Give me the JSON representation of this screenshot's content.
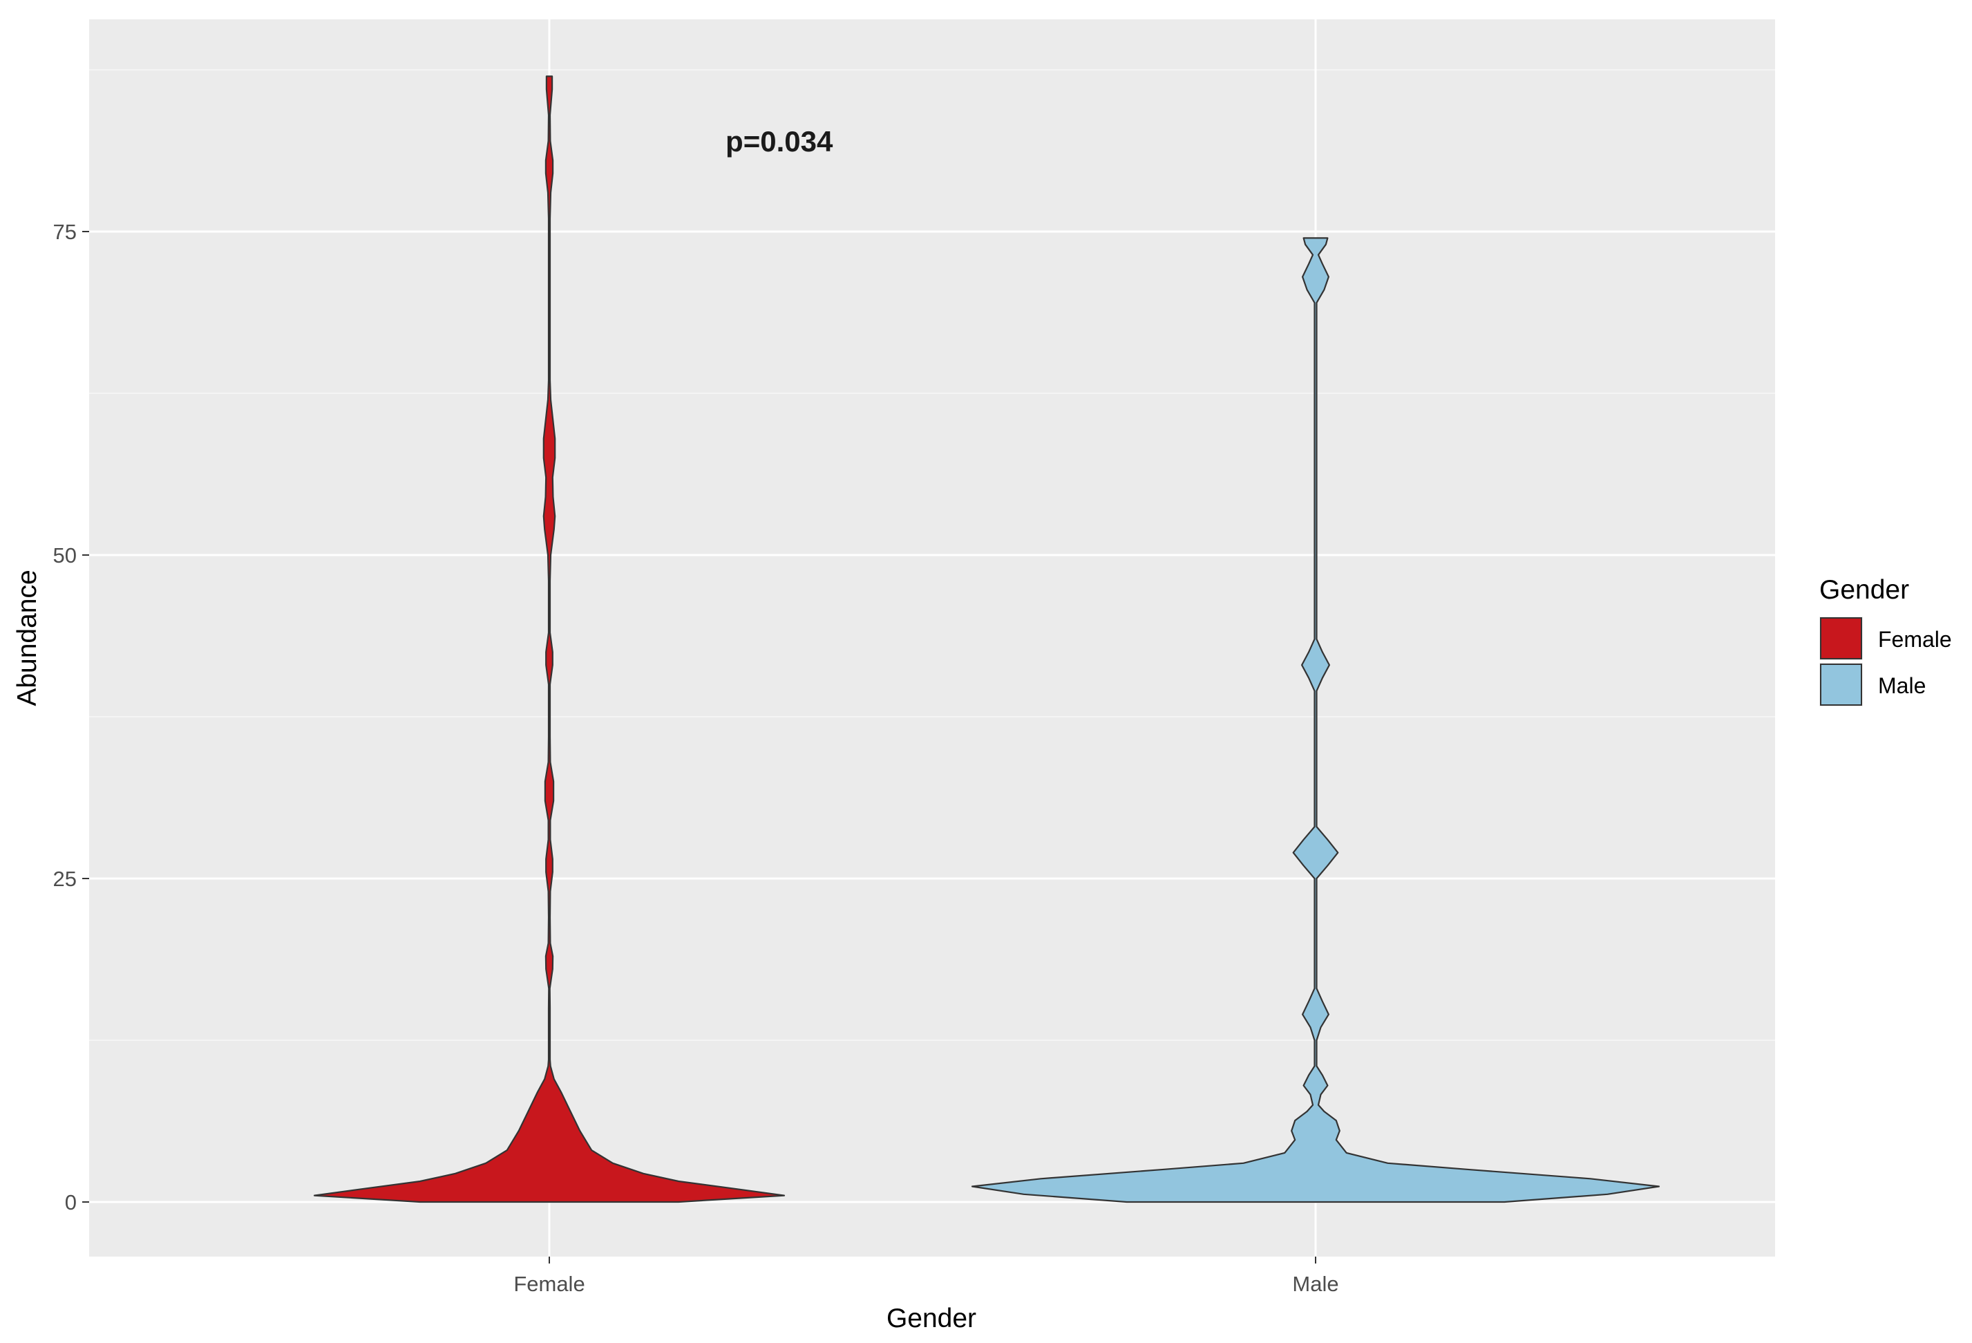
{
  "chart_data": {
    "type": "violin",
    "title": "",
    "xlabel": "Gender",
    "ylabel": "Abundance",
    "ylim": [
      -4,
      88
    ],
    "y_ticks": [
      0,
      25,
      50,
      75
    ],
    "y_tick_labels": [
      "0",
      "25",
      "50",
      "75"
    ],
    "categories": [
      "Female",
      "Male"
    ],
    "annotation": {
      "text": "p=0.034",
      "x_category": "Female",
      "x_offset": 0.3,
      "y": 82
    },
    "grid": true,
    "legend": {
      "title": "Gender",
      "position": "right",
      "entries": [
        "Female",
        "Male"
      ]
    },
    "series": [
      {
        "name": "Female",
        "color": "#C8171D",
        "y_min": 0.0,
        "y_max": 87.0,
        "density": [
          [
            0.0,
            0.55
          ],
          [
            0.5,
            1.0
          ],
          [
            1.0,
            0.8
          ],
          [
            1.6,
            0.55
          ],
          [
            2.2,
            0.4
          ],
          [
            3.0,
            0.27
          ],
          [
            4.0,
            0.18
          ],
          [
            5.5,
            0.13
          ],
          [
            7.0,
            0.09
          ],
          [
            8.5,
            0.05
          ],
          [
            9.5,
            0.02
          ],
          [
            10.5,
            0.005
          ],
          [
            11.0,
            0.003
          ],
          [
            15.0,
            0.003
          ],
          [
            16.5,
            0.002
          ],
          [
            18.0,
            0.014
          ],
          [
            19.0,
            0.015
          ],
          [
            20.0,
            0.004
          ],
          [
            22.0,
            0.003
          ],
          [
            24.0,
            0.004
          ],
          [
            25.5,
            0.014
          ],
          [
            26.5,
            0.014
          ],
          [
            28.0,
            0.004
          ],
          [
            29.5,
            0.004
          ],
          [
            31.0,
            0.018
          ],
          [
            32.5,
            0.018
          ],
          [
            34.0,
            0.004
          ],
          [
            36.0,
            0.003
          ],
          [
            40.0,
            0.003
          ],
          [
            41.5,
            0.014
          ],
          [
            42.5,
            0.014
          ],
          [
            44.0,
            0.003
          ],
          [
            48.0,
            0.003
          ],
          [
            50.0,
            0.006
          ],
          [
            52.0,
            0.02
          ],
          [
            53.0,
            0.024
          ],
          [
            54.5,
            0.016
          ],
          [
            56.0,
            0.014
          ],
          [
            57.5,
            0.024
          ],
          [
            59.0,
            0.024
          ],
          [
            60.5,
            0.015
          ],
          [
            62.0,
            0.006
          ],
          [
            63.5,
            0.003
          ],
          [
            76.0,
            0.003
          ],
          [
            78.0,
            0.006
          ],
          [
            79.5,
            0.015
          ],
          [
            80.5,
            0.015
          ],
          [
            82.0,
            0.004
          ],
          [
            84.0,
            0.003
          ],
          [
            86.0,
            0.012
          ],
          [
            87.0,
            0.012
          ]
        ]
      },
      {
        "name": "Male",
        "color": "#92C5DE",
        "y_min": 0.0,
        "y_max": 74.5,
        "density": [
          [
            0.0,
            0.55
          ],
          [
            0.6,
            0.85
          ],
          [
            1.2,
            1.0
          ],
          [
            1.8,
            0.8
          ],
          [
            2.5,
            0.45
          ],
          [
            3.0,
            0.21
          ],
          [
            3.8,
            0.09
          ],
          [
            4.8,
            0.06
          ],
          [
            5.5,
            0.07
          ],
          [
            6.3,
            0.06
          ],
          [
            7.0,
            0.025
          ],
          [
            7.5,
            0.008
          ],
          [
            8.3,
            0.015
          ],
          [
            9.0,
            0.035
          ],
          [
            9.8,
            0.02
          ],
          [
            10.5,
            0.003
          ],
          [
            12.5,
            0.003
          ],
          [
            13.5,
            0.015
          ],
          [
            14.5,
            0.038
          ],
          [
            15.5,
            0.02
          ],
          [
            16.5,
            0.003
          ],
          [
            25.0,
            0.003
          ],
          [
            26.0,
            0.035
          ],
          [
            27.0,
            0.065
          ],
          [
            28.0,
            0.035
          ],
          [
            29.0,
            0.003
          ],
          [
            39.5,
            0.003
          ],
          [
            40.5,
            0.02
          ],
          [
            41.5,
            0.04
          ],
          [
            42.5,
            0.02
          ],
          [
            43.5,
            0.003
          ],
          [
            69.5,
            0.003
          ],
          [
            70.5,
            0.025
          ],
          [
            71.5,
            0.038
          ],
          [
            72.5,
            0.02
          ],
          [
            73.2,
            0.008
          ],
          [
            74.0,
            0.03
          ],
          [
            74.5,
            0.035
          ]
        ]
      }
    ]
  }
}
